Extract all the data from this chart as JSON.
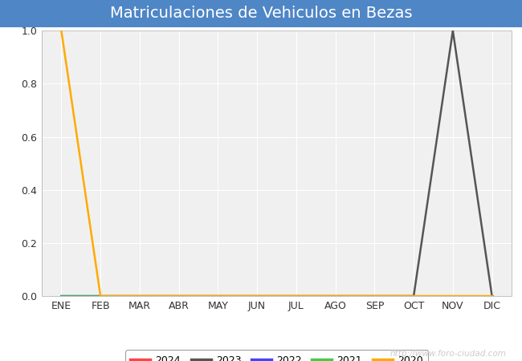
{
  "title": "Matriculaciones de Vehiculos en Bezas",
  "title_bg_color": "#4f86c6",
  "title_text_color": "#ffffff",
  "fig_bg_color": "#ffffff",
  "plot_bg_color": "#f0f0f0",
  "months": [
    "ENE",
    "FEB",
    "MAR",
    "ABR",
    "MAY",
    "JUN",
    "JUL",
    "AGO",
    "SEP",
    "OCT",
    "NOV",
    "DIC"
  ],
  "month_indices": [
    1,
    2,
    3,
    4,
    5,
    6,
    7,
    8,
    9,
    10,
    11,
    12
  ],
  "ylim": [
    0.0,
    1.0
  ],
  "yticks": [
    0.0,
    0.2,
    0.4,
    0.6,
    0.8,
    1.0
  ],
  "series": {
    "2024": {
      "color": "#ff4444",
      "data": {
        "1": 0,
        "2": 0,
        "3": 0,
        "4": 0,
        "5": 0,
        "6": 0,
        "7": 0,
        "8": 0,
        "9": 0,
        "10": 0,
        "11": 0,
        "12": 0
      }
    },
    "2023": {
      "color": "#555555",
      "data": {
        "1": 0,
        "2": 0,
        "3": 0,
        "4": 0,
        "5": 0,
        "6": 0,
        "7": 0,
        "8": 0,
        "9": 0,
        "10": 0,
        "11": 1.0,
        "12": 0
      }
    },
    "2022": {
      "color": "#4444ff",
      "data": {
        "1": 0,
        "2": 0,
        "3": 0,
        "4": 0,
        "5": 0,
        "6": 0,
        "7": 0,
        "8": 0,
        "9": 0,
        "10": 0,
        "11": 0,
        "12": 0
      }
    },
    "2021": {
      "color": "#44cc44",
      "data": {
        "1": 0,
        "2": 0,
        "3": 0,
        "4": 0,
        "5": 0,
        "6": 0,
        "7": 0,
        "8": 0,
        "9": 0,
        "10": 0,
        "11": 0,
        "12": 0
      }
    },
    "2020": {
      "color": "#ffaa00",
      "data": {
        "1": 1.0,
        "2": 0,
        "3": 0,
        "4": 0,
        "5": 0,
        "6": 0,
        "7": 0,
        "8": 0,
        "9": 0,
        "10": 0,
        "11": 0,
        "12": 0
      }
    }
  },
  "legend_order": [
    "2024",
    "2023",
    "2022",
    "2021",
    "2020"
  ],
  "watermark": "http://www.foro-ciudad.com",
  "watermark_color": "#cccccc",
  "grid_color": "#ffffff",
  "axis_label_color": "#333333",
  "line_width": 1.8,
  "title_fontsize": 14,
  "tick_fontsize": 9
}
